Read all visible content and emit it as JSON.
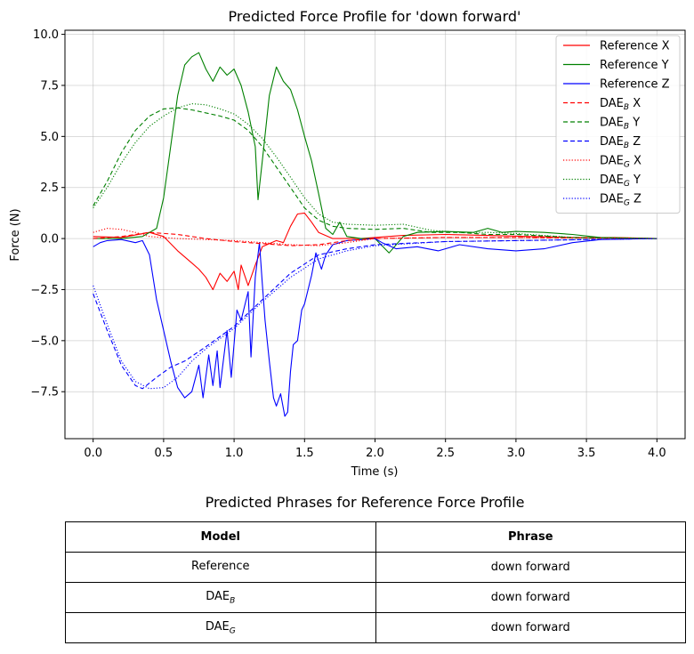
{
  "chart_data": {
    "type": "line",
    "title": "Predicted Force Profile for 'down forward'",
    "xlabel": "Time (s)",
    "ylabel": "Force (N)",
    "xlim": [
      -0.2,
      4.2
    ],
    "ylim": [
      -9.8,
      10.2
    ],
    "xticks": [
      0.0,
      0.5,
      1.0,
      1.5,
      2.0,
      2.5,
      3.0,
      3.5,
      4.0
    ],
    "xtick_labels": [
      "0.0",
      "0.5",
      "1.0",
      "1.5",
      "2.0",
      "2.5",
      "3.0",
      "3.5",
      "4.0"
    ],
    "yticks": [
      -7.5,
      -5.0,
      -2.5,
      0.0,
      2.5,
      5.0,
      7.5,
      10.0
    ],
    "ytick_labels": [
      "−7.5",
      "−5.0",
      "−2.5",
      "0.0",
      "2.5",
      "5.0",
      "7.5",
      "10.0"
    ],
    "grid": true,
    "legend_position": "top-right",
    "series": [
      {
        "legend_prefix": "Reference",
        "legend_sub": "",
        "legend_suffix": "X",
        "color": "#ff0000",
        "dash": "solid",
        "points": [
          [
            0,
            0.1
          ],
          [
            0.2,
            0.05
          ],
          [
            0.4,
            0.3
          ],
          [
            0.5,
            0.1
          ],
          [
            0.6,
            -0.6
          ],
          [
            0.7,
            -1.2
          ],
          [
            0.75,
            -1.5
          ],
          [
            0.8,
            -1.9
          ],
          [
            0.85,
            -2.5
          ],
          [
            0.9,
            -1.7
          ],
          [
            0.95,
            -2.1
          ],
          [
            1.0,
            -1.6
          ],
          [
            1.03,
            -2.5
          ],
          [
            1.05,
            -1.3
          ],
          [
            1.1,
            -2.3
          ],
          [
            1.15,
            -1.3
          ],
          [
            1.2,
            -0.4
          ],
          [
            1.3,
            -0.1
          ],
          [
            1.35,
            -0.2
          ],
          [
            1.4,
            0.6
          ],
          [
            1.45,
            1.2
          ],
          [
            1.5,
            1.25
          ],
          [
            1.55,
            0.8
          ],
          [
            1.6,
            0.3
          ],
          [
            1.7,
            0.0
          ],
          [
            1.9,
            0.0
          ],
          [
            2.2,
            0.15
          ],
          [
            2.5,
            0.2
          ],
          [
            2.8,
            0.15
          ],
          [
            3.1,
            0.1
          ],
          [
            3.4,
            0.05
          ],
          [
            3.7,
            0.05
          ],
          [
            4.0,
            0.0
          ]
        ]
      },
      {
        "legend_prefix": "Reference",
        "legend_sub": "",
        "legend_suffix": "Y",
        "color": "#008000",
        "dash": "solid",
        "points": [
          [
            0,
            0.0
          ],
          [
            0.2,
            0.0
          ],
          [
            0.35,
            0.1
          ],
          [
            0.45,
            0.5
          ],
          [
            0.5,
            2.0
          ],
          [
            0.55,
            4.5
          ],
          [
            0.6,
            7.0
          ],
          [
            0.65,
            8.5
          ],
          [
            0.7,
            8.9
          ],
          [
            0.75,
            9.1
          ],
          [
            0.8,
            8.3
          ],
          [
            0.85,
            7.7
          ],
          [
            0.9,
            8.4
          ],
          [
            0.95,
            8.0
          ],
          [
            1.0,
            8.3
          ],
          [
            1.05,
            7.5
          ],
          [
            1.1,
            6.2
          ],
          [
            1.15,
            4.5
          ],
          [
            1.17,
            1.9
          ],
          [
            1.2,
            3.8
          ],
          [
            1.25,
            7.0
          ],
          [
            1.3,
            8.4
          ],
          [
            1.35,
            7.7
          ],
          [
            1.4,
            7.3
          ],
          [
            1.45,
            6.3
          ],
          [
            1.5,
            5.0
          ],
          [
            1.55,
            3.8
          ],
          [
            1.6,
            2.2
          ],
          [
            1.65,
            0.5
          ],
          [
            1.7,
            0.2
          ],
          [
            1.75,
            0.8
          ],
          [
            1.8,
            0.1
          ],
          [
            1.9,
            0.0
          ],
          [
            2.0,
            0.0
          ],
          [
            2.1,
            -0.7
          ],
          [
            2.15,
            -0.3
          ],
          [
            2.2,
            0.1
          ],
          [
            2.3,
            0.3
          ],
          [
            2.5,
            0.35
          ],
          [
            2.7,
            0.3
          ],
          [
            2.8,
            0.5
          ],
          [
            2.9,
            0.3
          ],
          [
            3.0,
            0.35
          ],
          [
            3.2,
            0.3
          ],
          [
            3.4,
            0.2
          ],
          [
            3.6,
            0.05
          ],
          [
            4.0,
            0.0
          ]
        ]
      },
      {
        "legend_prefix": "Reference",
        "legend_sub": "",
        "legend_suffix": "Z",
        "color": "#0000ff",
        "dash": "solid",
        "points": [
          [
            0,
            -0.4
          ],
          [
            0.05,
            -0.2
          ],
          [
            0.1,
            -0.1
          ],
          [
            0.2,
            -0.05
          ],
          [
            0.3,
            -0.2
          ],
          [
            0.35,
            -0.1
          ],
          [
            0.4,
            -0.8
          ],
          [
            0.45,
            -3.0
          ],
          [
            0.5,
            -4.5
          ],
          [
            0.55,
            -6.0
          ],
          [
            0.6,
            -7.3
          ],
          [
            0.65,
            -7.8
          ],
          [
            0.7,
            -7.5
          ],
          [
            0.75,
            -6.2
          ],
          [
            0.78,
            -7.8
          ],
          [
            0.82,
            -5.7
          ],
          [
            0.85,
            -7.2
          ],
          [
            0.88,
            -5.5
          ],
          [
            0.9,
            -7.3
          ],
          [
            0.95,
            -4.5
          ],
          [
            0.98,
            -6.8
          ],
          [
            1.02,
            -3.5
          ],
          [
            1.05,
            -4.0
          ],
          [
            1.1,
            -2.6
          ],
          [
            1.12,
            -5.8
          ],
          [
            1.15,
            -1.9
          ],
          [
            1.18,
            -0.2
          ],
          [
            1.2,
            -2.2
          ],
          [
            1.22,
            -4.0
          ],
          [
            1.25,
            -6.0
          ],
          [
            1.28,
            -7.8
          ],
          [
            1.3,
            -8.2
          ],
          [
            1.33,
            -7.6
          ],
          [
            1.36,
            -8.7
          ],
          [
            1.38,
            -8.5
          ],
          [
            1.4,
            -6.5
          ],
          [
            1.42,
            -5.2
          ],
          [
            1.45,
            -5.0
          ],
          [
            1.48,
            -3.5
          ],
          [
            1.5,
            -3.2
          ],
          [
            1.55,
            -1.8
          ],
          [
            1.58,
            -0.7
          ],
          [
            1.62,
            -1.5
          ],
          [
            1.65,
            -0.8
          ],
          [
            1.7,
            -0.3
          ],
          [
            1.8,
            -0.1
          ],
          [
            2.0,
            0.0
          ],
          [
            2.05,
            -0.2
          ],
          [
            2.15,
            -0.5
          ],
          [
            2.3,
            -0.4
          ],
          [
            2.45,
            -0.6
          ],
          [
            2.6,
            -0.3
          ],
          [
            2.8,
            -0.5
          ],
          [
            3.0,
            -0.6
          ],
          [
            3.2,
            -0.5
          ],
          [
            3.4,
            -0.2
          ],
          [
            3.6,
            -0.05
          ],
          [
            4.0,
            0.0
          ]
        ]
      },
      {
        "legend_prefix": "DAE",
        "legend_sub": "B",
        "legend_suffix": "X",
        "color": "#ff0000",
        "dash": "dashed",
        "points": [
          [
            0,
            0.0
          ],
          [
            0.2,
            0.1
          ],
          [
            0.4,
            0.3
          ],
          [
            0.6,
            0.2
          ],
          [
            0.8,
            0.0
          ],
          [
            1.0,
            -0.15
          ],
          [
            1.2,
            -0.25
          ],
          [
            1.4,
            -0.35
          ],
          [
            1.6,
            -0.3
          ],
          [
            1.8,
            -0.1
          ],
          [
            2.0,
            0.0
          ],
          [
            2.5,
            0.05
          ],
          [
            3.0,
            0.05
          ],
          [
            4.0,
            0.0
          ]
        ]
      },
      {
        "legend_prefix": "DAE",
        "legend_sub": "B",
        "legend_suffix": "Y",
        "color": "#008000",
        "dash": "dashed",
        "points": [
          [
            0,
            1.6
          ],
          [
            0.1,
            2.8
          ],
          [
            0.2,
            4.2
          ],
          [
            0.3,
            5.3
          ],
          [
            0.4,
            6.0
          ],
          [
            0.5,
            6.35
          ],
          [
            0.6,
            6.4
          ],
          [
            0.7,
            6.3
          ],
          [
            0.8,
            6.15
          ],
          [
            0.9,
            6.0
          ],
          [
            1.0,
            5.8
          ],
          [
            1.1,
            5.3
          ],
          [
            1.2,
            4.5
          ],
          [
            1.3,
            3.5
          ],
          [
            1.4,
            2.5
          ],
          [
            1.5,
            1.5
          ],
          [
            1.6,
            0.9
          ],
          [
            1.7,
            0.6
          ],
          [
            1.8,
            0.5
          ],
          [
            2.0,
            0.45
          ],
          [
            2.2,
            0.5
          ],
          [
            2.4,
            0.3
          ],
          [
            2.6,
            0.3
          ],
          [
            2.8,
            0.2
          ],
          [
            3.0,
            0.2
          ],
          [
            3.4,
            0.05
          ],
          [
            4.0,
            0.0
          ]
        ]
      },
      {
        "legend_prefix": "DAE",
        "legend_sub": "B",
        "legend_suffix": "Z",
        "color": "#0000ff",
        "dash": "dashed",
        "points": [
          [
            0,
            -2.7
          ],
          [
            0.1,
            -4.5
          ],
          [
            0.2,
            -6.2
          ],
          [
            0.3,
            -7.2
          ],
          [
            0.35,
            -7.35
          ],
          [
            0.45,
            -6.8
          ],
          [
            0.55,
            -6.3
          ],
          [
            0.65,
            -6.0
          ],
          [
            0.8,
            -5.3
          ],
          [
            1.0,
            -4.3
          ],
          [
            1.2,
            -3.0
          ],
          [
            1.4,
            -1.7
          ],
          [
            1.6,
            -0.8
          ],
          [
            1.8,
            -0.5
          ],
          [
            2.0,
            -0.3
          ],
          [
            2.5,
            -0.15
          ],
          [
            3.0,
            -0.1
          ],
          [
            4.0,
            0.0
          ]
        ]
      },
      {
        "legend_prefix": "DAE",
        "legend_sub": "G",
        "legend_suffix": "X",
        "color": "#ff0000",
        "dash": "dotted",
        "points": [
          [
            0,
            0.3
          ],
          [
            0.1,
            0.5
          ],
          [
            0.2,
            0.45
          ],
          [
            0.3,
            0.3
          ],
          [
            0.4,
            0.1
          ],
          [
            0.6,
            0.0
          ],
          [
            0.8,
            -0.05
          ],
          [
            1.0,
            -0.1
          ],
          [
            1.2,
            -0.2
          ],
          [
            1.4,
            -0.3
          ],
          [
            1.6,
            -0.35
          ],
          [
            1.8,
            -0.2
          ],
          [
            2.0,
            0.0
          ],
          [
            2.5,
            0.05
          ],
          [
            3.0,
            0.05
          ],
          [
            4.0,
            0.0
          ]
        ]
      },
      {
        "legend_prefix": "DAE",
        "legend_sub": "G",
        "legend_suffix": "Y",
        "color": "#008000",
        "dash": "dotted",
        "points": [
          [
            0,
            1.5
          ],
          [
            0.1,
            2.5
          ],
          [
            0.2,
            3.7
          ],
          [
            0.3,
            4.7
          ],
          [
            0.4,
            5.5
          ],
          [
            0.5,
            6.0
          ],
          [
            0.6,
            6.4
          ],
          [
            0.7,
            6.6
          ],
          [
            0.8,
            6.55
          ],
          [
            0.9,
            6.35
          ],
          [
            1.0,
            6.1
          ],
          [
            1.1,
            5.6
          ],
          [
            1.2,
            4.9
          ],
          [
            1.3,
            4.0
          ],
          [
            1.4,
            3.0
          ],
          [
            1.5,
            2.0
          ],
          [
            1.6,
            1.2
          ],
          [
            1.7,
            0.8
          ],
          [
            1.8,
            0.7
          ],
          [
            2.0,
            0.65
          ],
          [
            2.2,
            0.7
          ],
          [
            2.4,
            0.4
          ],
          [
            2.6,
            0.3
          ],
          [
            2.8,
            0.3
          ],
          [
            3.0,
            0.25
          ],
          [
            3.4,
            0.05
          ],
          [
            4.0,
            0.0
          ]
        ]
      },
      {
        "legend_prefix": "DAE",
        "legend_sub": "G",
        "legend_suffix": "Z",
        "color": "#0000ff",
        "dash": "dotted",
        "points": [
          [
            0,
            -2.3
          ],
          [
            0.1,
            -4.2
          ],
          [
            0.2,
            -6.0
          ],
          [
            0.3,
            -7.0
          ],
          [
            0.4,
            -7.35
          ],
          [
            0.5,
            -7.3
          ],
          [
            0.6,
            -6.8
          ],
          [
            0.7,
            -6.0
          ],
          [
            0.8,
            -5.4
          ],
          [
            1.0,
            -4.4
          ],
          [
            1.2,
            -3.1
          ],
          [
            1.4,
            -1.9
          ],
          [
            1.6,
            -1.0
          ],
          [
            1.8,
            -0.6
          ],
          [
            2.0,
            -0.35
          ],
          [
            2.5,
            -0.15
          ],
          [
            3.0,
            -0.1
          ],
          [
            4.0,
            0.0
          ]
        ]
      }
    ]
  },
  "table": {
    "title": "Predicted Phrases for Reference Force Profile",
    "headers": [
      "Model",
      "Phrase"
    ],
    "rows": [
      {
        "model": "Reference",
        "model_sub": "",
        "phrase": "down forward"
      },
      {
        "model": "DAE",
        "model_sub": "B",
        "phrase": "down forward"
      },
      {
        "model": "DAE",
        "model_sub": "G",
        "phrase": "down forward"
      }
    ]
  }
}
